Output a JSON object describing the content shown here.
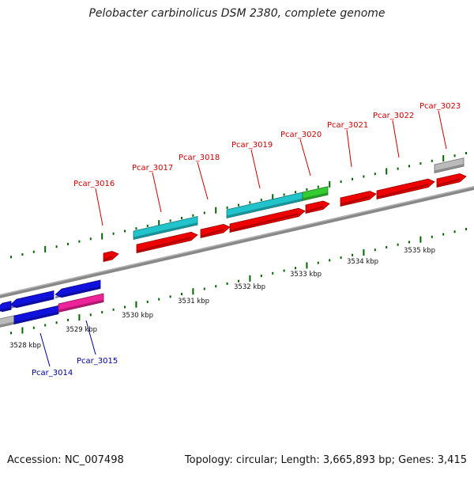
{
  "title": "Pelobacter carbinolicus DSM 2380, complete genome",
  "footer": {
    "accession": "Accession: NC_007498",
    "summary": "Topology: circular; Length: 3,665,893 bp; Genes: 3,415"
  },
  "colors": {
    "backbone": "#888888",
    "forward_label": "#cc0000",
    "reverse_label": "#000099",
    "tick_mark": "#006600",
    "red": "#ee0000",
    "cyan": "#22c4cc",
    "green": "#33cc33",
    "blue": "#1111dd",
    "magenta": "#ee2299",
    "gray": "#bbbbbb"
  },
  "scale_labels": [
    "3528 kbp",
    "3529 kbp",
    "3530 kbp",
    "3531 kbp",
    "3532 kbp",
    "3533 kbp",
    "3534 kbp",
    "3535 kbp"
  ],
  "forward_labels": [
    "Pcar_3016",
    "Pcar_3017",
    "Pcar_3018",
    "Pcar_3019",
    "Pcar_3020",
    "Pcar_3021",
    "Pcar_3022",
    "Pcar_3023"
  ],
  "reverse_labels": [
    "Pcar_3014",
    "Pcar_3015"
  ]
}
